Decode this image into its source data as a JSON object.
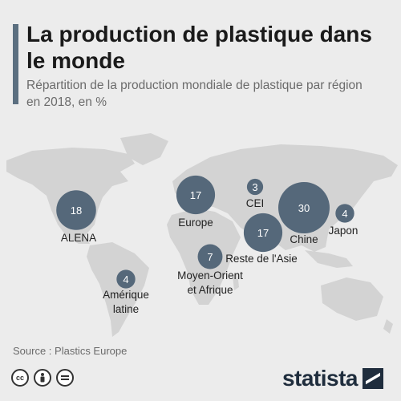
{
  "header": {
    "title": "La production de plastique dans le monde",
    "subtitle": "Répartition de la production mondiale de plastique par région en 2018, en %"
  },
  "chart_data": {
    "type": "bubble-map",
    "unit": "%",
    "regions": [
      {
        "name": "ALENA",
        "value": 18
      },
      {
        "name": "Europe",
        "value": 17
      },
      {
        "name": "CEI",
        "value": 3
      },
      {
        "name": "Chine",
        "value": 30
      },
      {
        "name": "Japon",
        "value": 4
      },
      {
        "name": "Reste de l'Asie",
        "value": 17
      },
      {
        "name": "Moyen-Orient et Afrique",
        "value": 7
      },
      {
        "name": "Amérique latine",
        "value": 4
      }
    ]
  },
  "footer": {
    "source": "Source : Plastics Europe",
    "license_icons": [
      "cc-icon",
      "person-icon",
      "equals-icon"
    ],
    "brand": "statista"
  },
  "colors": {
    "background": "#ececec",
    "land": "#d3d3d3",
    "bubble": "#55687a",
    "bubble_text": "#ffffff",
    "accent": "#5b6f80"
  }
}
